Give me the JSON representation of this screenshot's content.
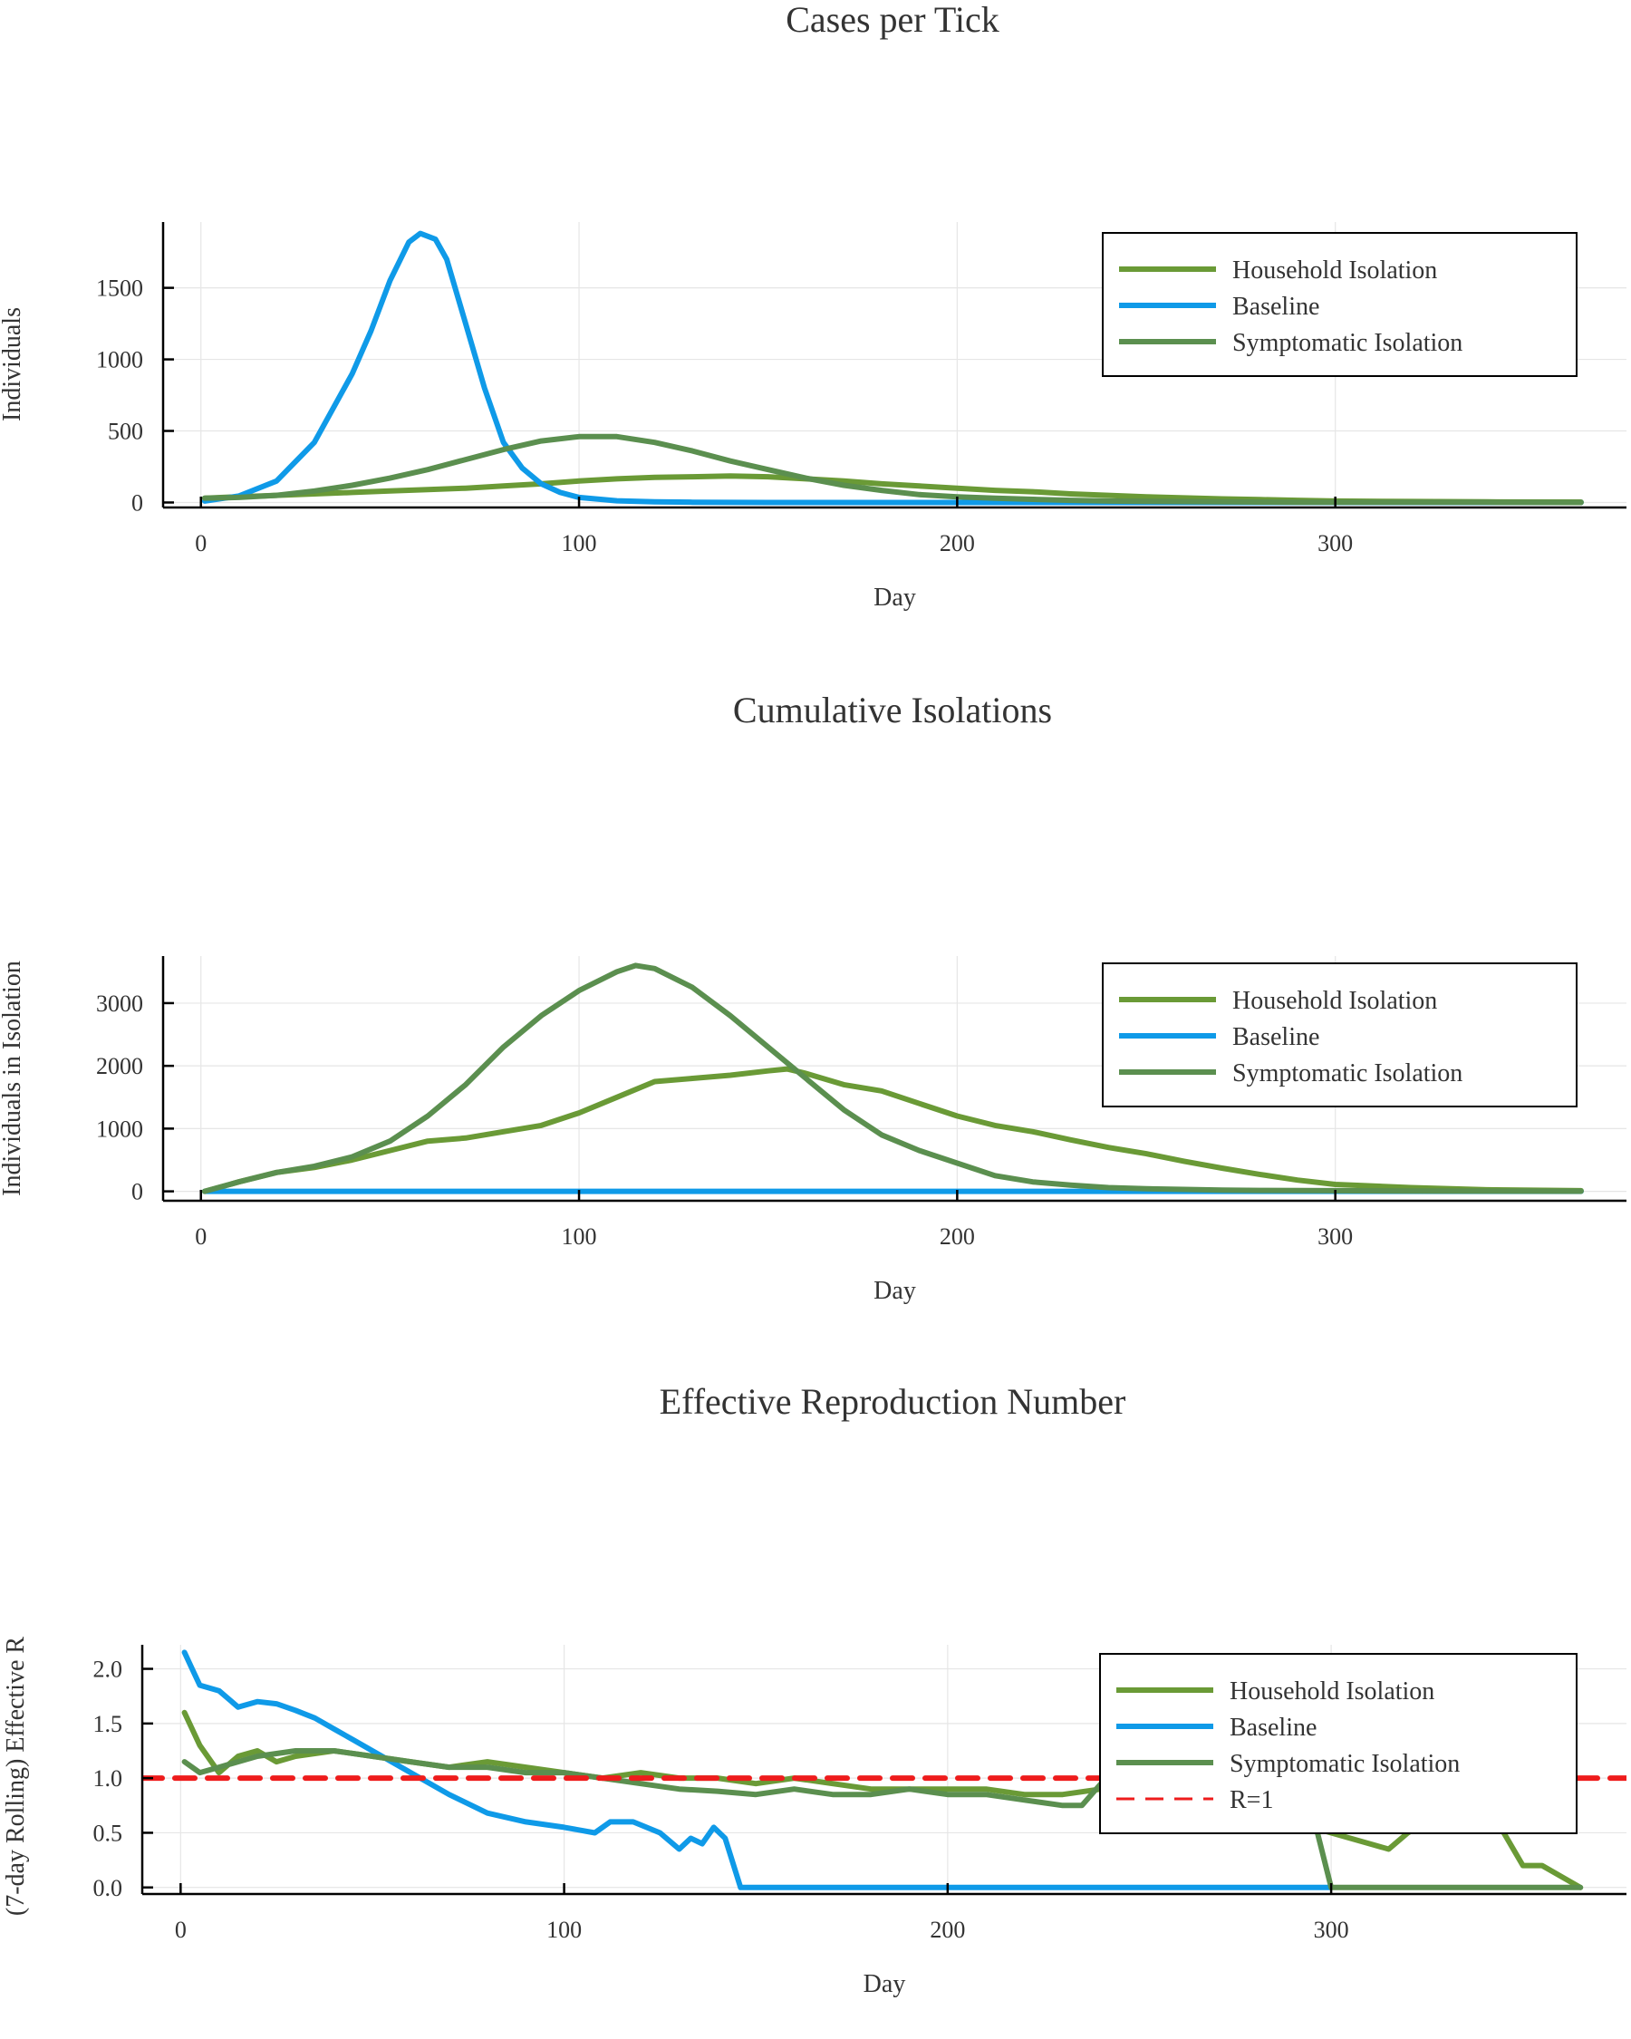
{
  "chart_data": [
    {
      "type": "line",
      "title": "Cases per Tick",
      "xlabel": "Day",
      "ylabel": "Individuals",
      "xlim": [
        -10,
        377
      ],
      "ylim": [
        -35,
        1960
      ],
      "xticks": [
        0,
        100,
        200,
        300
      ],
      "yticks": [
        0,
        500,
        1000,
        1500
      ],
      "grid": true,
      "legend": "top-right",
      "series": [
        {
          "name": "Household Isolation",
          "color": "#6a9a36",
          "x": [
            1,
            10,
            20,
            30,
            40,
            50,
            60,
            70,
            80,
            90,
            100,
            110,
            120,
            130,
            140,
            150,
            160,
            170,
            180,
            190,
            200,
            210,
            220,
            230,
            240,
            250,
            260,
            270,
            280,
            290,
            300,
            320,
            340,
            365
          ],
          "y": [
            30,
            40,
            50,
            60,
            70,
            80,
            90,
            100,
            115,
            130,
            150,
            165,
            175,
            180,
            185,
            180,
            165,
            150,
            130,
            115,
            100,
            85,
            75,
            60,
            50,
            40,
            32,
            25,
            20,
            15,
            10,
            7,
            4,
            3
          ]
        },
        {
          "name": "Baseline",
          "color": "#0f9ae8",
          "x": [
            1,
            10,
            20,
            30,
            40,
            45,
            50,
            55,
            58,
            62,
            65,
            70,
            75,
            80,
            85,
            90,
            95,
            100,
            110,
            120,
            130,
            150,
            200,
            250,
            300,
            365
          ],
          "y": [
            10,
            45,
            150,
            420,
            900,
            1200,
            1550,
            1820,
            1880,
            1840,
            1700,
            1250,
            800,
            420,
            240,
            130,
            70,
            35,
            12,
            5,
            2,
            0,
            0,
            0,
            0,
            0
          ]
        },
        {
          "name": "Symptomatic Isolation",
          "color": "#5b8f4f",
          "x": [
            1,
            10,
            20,
            30,
            40,
            50,
            60,
            70,
            80,
            90,
            100,
            110,
            120,
            130,
            140,
            150,
            160,
            170,
            180,
            190,
            200,
            210,
            220,
            230,
            240,
            250,
            260,
            270,
            280,
            290,
            300,
            320,
            340,
            365
          ],
          "y": [
            30,
            35,
            50,
            80,
            120,
            170,
            230,
            300,
            370,
            430,
            460,
            460,
            420,
            360,
            290,
            230,
            170,
            120,
            85,
            55,
            40,
            30,
            22,
            15,
            10,
            8,
            6,
            4,
            3,
            2,
            2,
            1,
            1,
            0
          ]
        }
      ]
    },
    {
      "type": "line",
      "title": "Cumulative Isolations",
      "xlabel": "Day",
      "ylabel": "Individuals in Isolation",
      "xlim": [
        -10,
        377
      ],
      "ylim": [
        -150,
        3750
      ],
      "xticks": [
        0,
        100,
        200,
        300
      ],
      "yticks": [
        0,
        1000,
        2000,
        3000
      ],
      "grid": true,
      "legend": "top-right",
      "series": [
        {
          "name": "Household Isolation",
          "color": "#6a9a36",
          "x": [
            1,
            10,
            20,
            30,
            40,
            50,
            60,
            70,
            80,
            90,
            100,
            110,
            120,
            130,
            140,
            150,
            155,
            160,
            170,
            180,
            190,
            200,
            210,
            220,
            230,
            240,
            250,
            260,
            270,
            280,
            290,
            300,
            320,
            340,
            365
          ],
          "y": [
            0,
            150,
            300,
            380,
            500,
            650,
            800,
            850,
            950,
            1050,
            1250,
            1500,
            1750,
            1800,
            1850,
            1920,
            1950,
            1880,
            1700,
            1600,
            1400,
            1200,
            1050,
            950,
            820,
            700,
            600,
            480,
            370,
            270,
            180,
            110,
            60,
            25,
            10
          ]
        },
        {
          "name": "Baseline",
          "color": "#0f9ae8",
          "x": [
            1,
            50,
            100,
            150,
            200,
            250,
            300,
            365
          ],
          "y": [
            0,
            0,
            0,
            0,
            0,
            0,
            0,
            0
          ]
        },
        {
          "name": "Symptomatic Isolation",
          "color": "#5b8f4f",
          "x": [
            1,
            10,
            20,
            30,
            40,
            50,
            60,
            70,
            80,
            90,
            100,
            110,
            115,
            120,
            130,
            140,
            150,
            160,
            170,
            180,
            190,
            200,
            210,
            220,
            230,
            240,
            250,
            260,
            270,
            280,
            300,
            320,
            340,
            365
          ],
          "y": [
            0,
            150,
            300,
            400,
            550,
            800,
            1200,
            1700,
            2300,
            2800,
            3200,
            3500,
            3600,
            3550,
            3250,
            2800,
            2300,
            1800,
            1300,
            900,
            650,
            450,
            250,
            150,
            100,
            60,
            40,
            30,
            20,
            15,
            10,
            5,
            3,
            2
          ]
        }
      ]
    },
    {
      "type": "line",
      "title": "Effective Reproduction Number",
      "xlabel": "Day",
      "ylabel": "(7-day Rolling) Effective R",
      "xlim": [
        -10,
        377
      ],
      "ylim": [
        -0.06,
        2.22
      ],
      "xticks": [
        0,
        100,
        200,
        300
      ],
      "yticks": [
        0.0,
        0.5,
        1.0,
        1.5,
        2.0
      ],
      "ytick_labels": [
        "0.0",
        "0.5",
        "1.0",
        "1.5",
        "2.0"
      ],
      "grid": true,
      "legend": "top-right",
      "series": [
        {
          "name": "Household Isolation",
          "color": "#6a9a36",
          "x": [
            1,
            5,
            10,
            15,
            20,
            25,
            30,
            40,
            50,
            60,
            70,
            80,
            90,
            100,
            110,
            120,
            130,
            140,
            150,
            160,
            170,
            180,
            190,
            200,
            210,
            220,
            230,
            240,
            250,
            280,
            290,
            300,
            310,
            315,
            320,
            330,
            340,
            345,
            350,
            355,
            365
          ],
          "y": [
            1.6,
            1.3,
            1.05,
            1.2,
            1.25,
            1.15,
            1.2,
            1.25,
            1.2,
            1.15,
            1.1,
            1.15,
            1.1,
            1.05,
            1.0,
            1.05,
            1.0,
            1.0,
            0.95,
            1.0,
            0.95,
            0.9,
            0.9,
            0.9,
            0.9,
            0.85,
            0.85,
            0.9,
            1.0,
            1.0,
            0.6,
            0.5,
            0.4,
            0.35,
            0.5,
            0.7,
            0.8,
            0.5,
            0.2,
            0.2,
            0.0
          ]
        },
        {
          "name": "Baseline",
          "color": "#0f9ae8",
          "x": [
            1,
            3,
            5,
            10,
            15,
            20,
            25,
            30,
            35,
            40,
            45,
            50,
            60,
            70,
            80,
            90,
            100,
            108,
            112,
            118,
            125,
            130,
            133,
            136,
            139,
            142,
            146,
            150,
            200,
            250,
            300
          ],
          "y": [
            2.15,
            2.0,
            1.85,
            1.8,
            1.65,
            1.7,
            1.68,
            1.62,
            1.55,
            1.45,
            1.35,
            1.25,
            1.05,
            0.85,
            0.68,
            0.6,
            0.55,
            0.5,
            0.6,
            0.6,
            0.5,
            0.35,
            0.45,
            0.4,
            0.55,
            0.45,
            0.0,
            0.0,
            0.0,
            0.0,
            0.0
          ]
        },
        {
          "name": "Symptomatic Isolation",
          "color": "#5b8f4f",
          "x": [
            1,
            5,
            10,
            20,
            30,
            40,
            50,
            60,
            70,
            80,
            90,
            100,
            110,
            120,
            130,
            140,
            150,
            160,
            170,
            180,
            190,
            200,
            210,
            220,
            230,
            235,
            240,
            250,
            260,
            280,
            295,
            300,
            310,
            330,
            365
          ],
          "y": [
            1.15,
            1.05,
            1.1,
            1.2,
            1.25,
            1.25,
            1.2,
            1.15,
            1.1,
            1.1,
            1.05,
            1.05,
            1.0,
            0.95,
            0.9,
            0.88,
            0.85,
            0.9,
            0.85,
            0.85,
            0.9,
            0.85,
            0.85,
            0.8,
            0.75,
            0.75,
            0.95,
            1.0,
            1.0,
            1.0,
            0.7,
            0.0,
            0.0,
            0.0,
            0.0
          ]
        },
        {
          "name": "R=1",
          "color": "#ee1c1c",
          "dashed": true,
          "x": [
            -10,
            377
          ],
          "y": [
            1.0,
            1.0
          ]
        }
      ]
    }
  ]
}
